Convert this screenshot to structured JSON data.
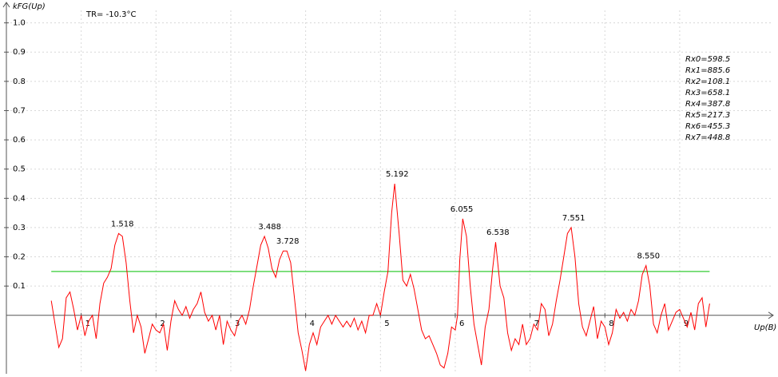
{
  "chart_data": {
    "type": "line",
    "y_label": "kFG(Up)",
    "x_label": "Up(B)",
    "temperature": "TR= -10.3°C",
    "resistances": [
      "Rx0=598.5",
      "Rx1=885.6",
      "Rx2=108.1",
      "Rx3=658.1",
      "Rx4=387.8",
      "Rx5=217.3",
      "Rx6=455.3",
      "Rx7=448.8"
    ],
    "xlim": [
      0,
      10.25
    ],
    "ylim": [
      -0.2,
      1.07
    ],
    "xticks": [
      1,
      2,
      3,
      4,
      5,
      6,
      7,
      8,
      9
    ],
    "yticks": [
      0.1,
      0.2,
      0.3,
      0.4,
      0.5,
      0.6,
      0.7,
      0.8,
      0.9,
      {
        "value": 1.0,
        "label": "1.0"
      }
    ],
    "grid": true,
    "threshold": {
      "value": 0.15,
      "x": [
        0.6,
        9.4
      ],
      "color": "#33cc33"
    },
    "series": [
      {
        "color": "#ff0000",
        "x": [
          0.6,
          0.65,
          0.7,
          0.75,
          0.8,
          0.85,
          0.9,
          0.95,
          1.0,
          1.05,
          1.1,
          1.15,
          1.2,
          1.25,
          1.3,
          1.35,
          1.4,
          1.45,
          1.5,
          1.55,
          1.6,
          1.65,
          1.7,
          1.75,
          1.8,
          1.85,
          1.9,
          1.95,
          2.0,
          2.05,
          2.1,
          2.15,
          2.2,
          2.25,
          2.3,
          2.35,
          2.4,
          2.45,
          2.5,
          2.55,
          2.6,
          2.65,
          2.7,
          2.75,
          2.8,
          2.85,
          2.9,
          2.95,
          3.0,
          3.05,
          3.1,
          3.15,
          3.2,
          3.25,
          3.3,
          3.35,
          3.4,
          3.45,
          3.5,
          3.55,
          3.6,
          3.65,
          3.7,
          3.75,
          3.8,
          3.85,
          3.9,
          3.95,
          4.0,
          4.05,
          4.1,
          4.15,
          4.2,
          4.25,
          4.3,
          4.35,
          4.4,
          4.45,
          4.5,
          4.55,
          4.6,
          4.65,
          4.7,
          4.75,
          4.8,
          4.85,
          4.9,
          4.95,
          5.0,
          5.05,
          5.1,
          5.15,
          5.19,
          5.25,
          5.3,
          5.35,
          5.4,
          5.45,
          5.5,
          5.55,
          5.6,
          5.65,
          5.7,
          5.75,
          5.8,
          5.85,
          5.9,
          5.95,
          6.0,
          6.03,
          6.06,
          6.1,
          6.15,
          6.2,
          6.25,
          6.3,
          6.35,
          6.4,
          6.45,
          6.5,
          6.54,
          6.6,
          6.65,
          6.7,
          6.75,
          6.8,
          6.85,
          6.9,
          6.95,
          7.0,
          7.05,
          7.1,
          7.15,
          7.2,
          7.25,
          7.3,
          7.35,
          7.4,
          7.45,
          7.5,
          7.55,
          7.6,
          7.65,
          7.7,
          7.75,
          7.8,
          7.85,
          7.9,
          7.95,
          8.0,
          8.05,
          8.1,
          8.15,
          8.2,
          8.25,
          8.3,
          8.35,
          8.4,
          8.45,
          8.5,
          8.55,
          8.6,
          8.65,
          8.7,
          8.75,
          8.8,
          8.85,
          8.9,
          8.95,
          9.0,
          9.05,
          9.1,
          9.15,
          9.2,
          9.25,
          9.3,
          9.35,
          9.4
        ],
        "values": [
          0.05,
          -0.03,
          -0.11,
          -0.08,
          0.06,
          0.08,
          0.02,
          -0.05,
          0.0,
          -0.07,
          -0.02,
          0.0,
          -0.08,
          0.04,
          0.11,
          0.13,
          0.16,
          0.24,
          0.28,
          0.27,
          0.18,
          0.05,
          -0.06,
          0.0,
          -0.04,
          -0.13,
          -0.08,
          -0.03,
          -0.05,
          -0.06,
          -0.03,
          -0.12,
          -0.02,
          0.05,
          0.02,
          0.0,
          0.03,
          -0.01,
          0.02,
          0.04,
          0.08,
          0.01,
          -0.02,
          0.0,
          -0.05,
          0.0,
          -0.1,
          -0.02,
          -0.05,
          -0.07,
          -0.02,
          0.0,
          -0.03,
          0.02,
          0.1,
          0.17,
          0.24,
          0.27,
          0.23,
          0.16,
          0.13,
          0.19,
          0.22,
          0.22,
          0.18,
          0.06,
          -0.06,
          -0.12,
          -0.19,
          -0.1,
          -0.06,
          -0.1,
          -0.04,
          -0.02,
          0.0,
          -0.03,
          0.0,
          -0.02,
          -0.04,
          -0.02,
          -0.04,
          -0.01,
          -0.05,
          -0.02,
          -0.06,
          0.0,
          0.0,
          0.04,
          0.0,
          0.08,
          0.15,
          0.35,
          0.45,
          0.28,
          0.12,
          0.1,
          0.14,
          0.09,
          0.02,
          -0.05,
          -0.08,
          -0.07,
          -0.1,
          -0.13,
          -0.17,
          -0.18,
          -0.13,
          -0.04,
          -0.05,
          0.0,
          0.19,
          0.33,
          0.27,
          0.1,
          -0.03,
          -0.1,
          -0.17,
          -0.04,
          0.02,
          0.16,
          0.25,
          0.1,
          0.06,
          -0.06,
          -0.12,
          -0.08,
          -0.1,
          -0.03,
          -0.1,
          -0.08,
          -0.03,
          -0.05,
          0.04,
          0.02,
          -0.07,
          -0.03,
          0.05,
          0.12,
          0.2,
          0.28,
          0.3,
          0.2,
          0.04,
          -0.04,
          -0.07,
          -0.02,
          0.03,
          -0.08,
          -0.02,
          -0.04,
          -0.1,
          -0.06,
          0.02,
          -0.01,
          0.01,
          -0.02,
          0.02,
          0.0,
          0.05,
          0.14,
          0.17,
          0.1,
          -0.03,
          -0.06,
          0.0,
          0.04,
          -0.05,
          -0.02,
          0.01,
          0.02,
          -0.01,
          -0.04,
          0.01,
          -0.05,
          0.04,
          0.06,
          -0.04,
          0.04
        ]
      }
    ],
    "annotations": [
      {
        "text": "1.518",
        "x": 1.518
      },
      {
        "text": "3.488",
        "x": 3.488
      },
      {
        "text": "3.728",
        "x": 3.728
      },
      {
        "text": "5.192",
        "x": 5.192
      },
      {
        "text": "6.055",
        "x": 6.055
      },
      {
        "text": "6.538",
        "x": 6.538
      },
      {
        "text": "7.551",
        "x": 7.551
      },
      {
        "text": "8.550",
        "x": 8.55
      }
    ]
  }
}
